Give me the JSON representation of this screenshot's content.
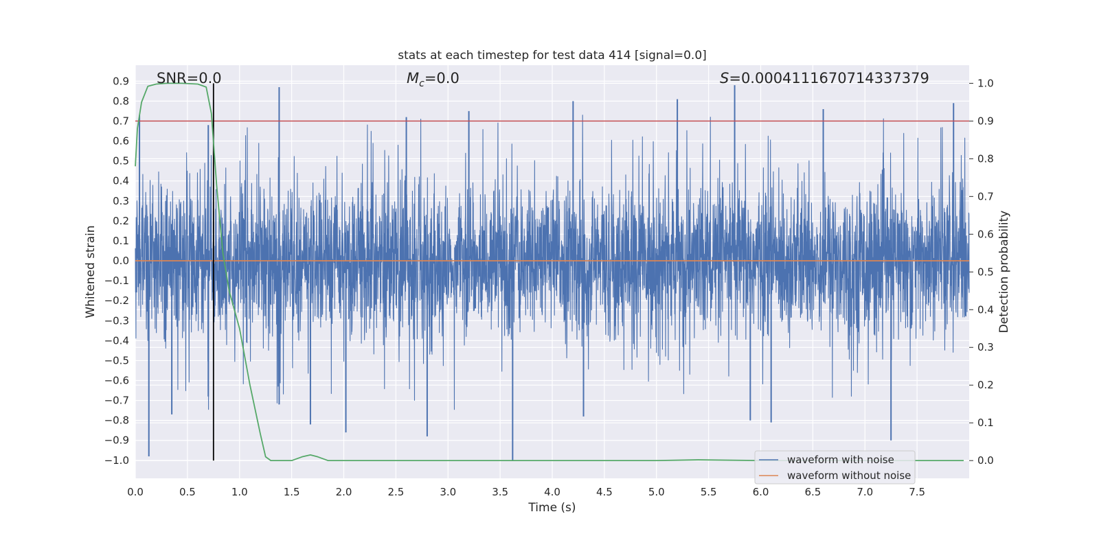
{
  "chart_data": {
    "type": "line",
    "title": "stats at each timestep for test data 414 [signal=0.0]",
    "xlabel": "Time (s)",
    "ylabel": "Whitened strain",
    "y2label": "Detection probability",
    "xlim": [
      0.0,
      8.0
    ],
    "ylim": [
      -1.09,
      0.98
    ],
    "y2lim": [
      -0.047,
      1.048
    ],
    "xticks": [
      "0.0",
      "0.5",
      "1.0",
      "1.5",
      "2.0",
      "2.5",
      "3.0",
      "3.5",
      "4.0",
      "4.5",
      "5.0",
      "5.5",
      "6.0",
      "6.5",
      "7.0",
      "7.5"
    ],
    "yticks": [
      "0.9",
      "0.8",
      "0.7",
      "0.6",
      "0.5",
      "0.4",
      "0.3",
      "0.2",
      "0.1",
      "0.0",
      "−0.1",
      "−0.2",
      "−0.3",
      "−0.4",
      "−0.5",
      "−0.6",
      "−0.7",
      "−0.8",
      "−0.9",
      "−1.0"
    ],
    "y2ticks": [
      "1.0",
      "0.9",
      "0.8",
      "0.7",
      "0.6",
      "0.5",
      "0.4",
      "0.3",
      "0.2",
      "0.1",
      "0.0"
    ],
    "grid": true,
    "annotations": {
      "snr": "SNR=0.0",
      "mc_symbol": "M",
      "mc_sub": "c",
      "mc_value": "=0.0",
      "s_symbol": "S",
      "s_value": "=0.0004111670714337379"
    },
    "threshold": {
      "y2": 0.9,
      "color": "#c44e52"
    },
    "marker_line": {
      "x": 0.75,
      "y2_range": [
        0.0,
        1.0
      ],
      "color": "#000000"
    },
    "legend": {
      "placement": "lower-right",
      "entries": [
        {
          "label": "waveform with noise",
          "color": "#4c72b0"
        },
        {
          "label": "waveform without noise",
          "color": "#dd8452"
        }
      ]
    },
    "series": [
      {
        "name": "waveform with noise",
        "color": "#4c72b0",
        "note": "dense noise, roughly uniform amplitude ~±0.3 with spikes up to ~0.87 and down to ~-1.0",
        "typical_amplitude": 0.3,
        "spikes": [
          {
            "x": 0.04,
            "y": 0.73
          },
          {
            "x": 0.13,
            "y": -0.98
          },
          {
            "x": 0.35,
            "y": -0.77
          },
          {
            "x": 0.7,
            "y": 0.68
          },
          {
            "x": 0.7,
            "y": -0.68
          },
          {
            "x": 1.38,
            "y": 0.87
          },
          {
            "x": 1.38,
            "y": -0.72
          },
          {
            "x": 1.68,
            "y": -0.82
          },
          {
            "x": 2.02,
            "y": -0.86
          },
          {
            "x": 2.6,
            "y": 0.72
          },
          {
            "x": 2.8,
            "y": -0.88
          },
          {
            "x": 3.2,
            "y": 0.75
          },
          {
            "x": 3.62,
            "y": -1.0
          },
          {
            "x": 4.2,
            "y": 0.8
          },
          {
            "x": 4.3,
            "y": -0.78
          },
          {
            "x": 5.2,
            "y": 0.81
          },
          {
            "x": 5.75,
            "y": 0.88
          },
          {
            "x": 5.9,
            "y": -0.8
          },
          {
            "x": 6.1,
            "y": -0.81
          },
          {
            "x": 6.6,
            "y": 0.76
          },
          {
            "x": 7.25,
            "y": -0.9
          },
          {
            "x": 7.85,
            "y": 0.79
          }
        ]
      },
      {
        "name": "waveform without noise",
        "color": "#dd8452",
        "x": [
          0.0,
          8.0
        ],
        "y": [
          0.0,
          0.0
        ]
      },
      {
        "name": "detection probability",
        "axis": "y2",
        "color": "#55a868",
        "x": [
          0.0,
          0.02,
          0.06,
          0.12,
          0.2,
          0.3,
          0.45,
          0.6,
          0.68,
          0.73,
          0.78,
          0.84,
          0.9,
          1.0,
          1.1,
          1.2,
          1.25,
          1.3,
          1.4,
          1.5,
          1.6,
          1.68,
          1.75,
          1.85,
          2.0,
          3.0,
          4.0,
          5.0,
          5.4,
          6.0,
          7.0,
          8.0
        ],
        "y": [
          0.78,
          0.88,
          0.95,
          0.992,
          0.998,
          1.0,
          1.0,
          0.998,
          0.99,
          0.92,
          0.73,
          0.55,
          0.45,
          0.35,
          0.2,
          0.07,
          0.01,
          0.0,
          0.0,
          0.0,
          0.01,
          0.015,
          0.01,
          0.0,
          0.0,
          0.0,
          0.0,
          0.0,
          0.002,
          0.0,
          0.0,
          0.0
        ]
      }
    ]
  }
}
